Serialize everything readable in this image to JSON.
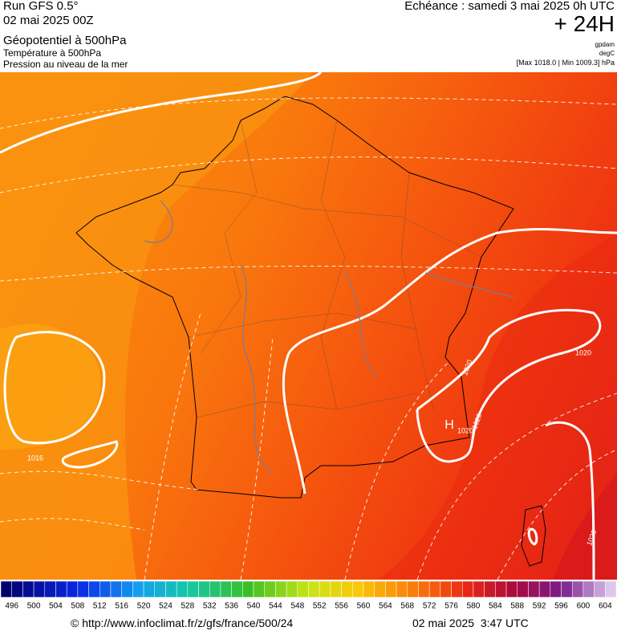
{
  "header": {
    "run": "Run GFS 0.5°",
    "run_date": "02 mai 2025 00Z",
    "title": "Géopotentiel à 500hPa",
    "subtitle1": "Température à 500hPa",
    "subtitle2": "Pression au niveau de la mer",
    "forecast": "Echéance : samedi 3 mai 2025 0h UTC",
    "lead": "+ 24H",
    "unit1": "gpdam",
    "unit2": "degC",
    "range": "[Max 1018.0 | Min 1009.3] hPa"
  },
  "map": {
    "labels": [
      "1016",
      "1020",
      "1020",
      "H",
      "1020",
      "1020",
      "1020"
    ]
  },
  "legend": {
    "labels": [
      496,
      500,
      504,
      508,
      512,
      516,
      520,
      524,
      528,
      532,
      536,
      540,
      544,
      548,
      552,
      556,
      560,
      564,
      568,
      572,
      576,
      580,
      584,
      588,
      592,
      596,
      600,
      604
    ]
  },
  "footer": {
    "url": "© http://www.infoclimat.fr/z/gfs/france/500/24",
    "time": "02 mai 2025  3:47 UTC"
  }
}
